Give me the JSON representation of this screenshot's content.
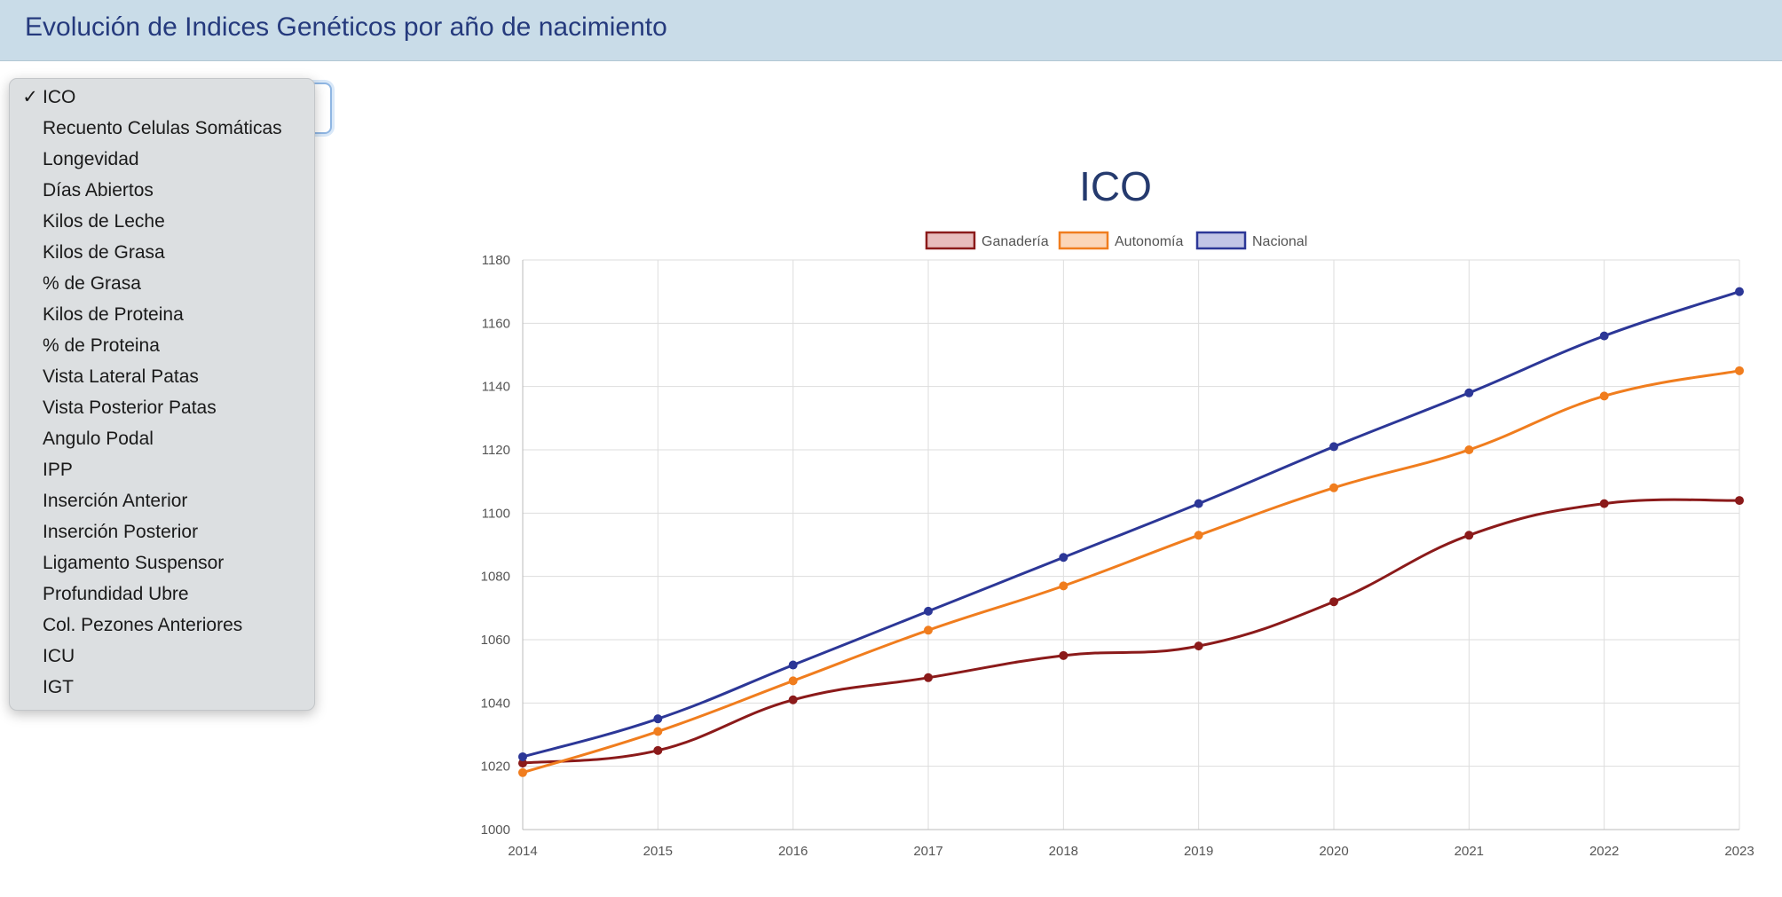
{
  "header": {
    "title": "Evolución de Indices Genéticos por año de nacimiento"
  },
  "select": {
    "selected": "ICO",
    "check_glyph": "✓",
    "options": [
      "ICO",
      "Recuento Celulas Somáticas",
      "Longevidad",
      "Días Abiertos",
      "Kilos de Leche",
      "Kilos de Grasa",
      "% de Grasa",
      "Kilos de Proteina",
      "% de Proteina",
      "Vista Lateral Patas",
      "Vista Posterior Patas",
      "Angulo Podal",
      "IPP",
      "Inserción Anterior",
      "Inserción Posterior",
      "Ligamento Suspensor",
      "Profundidad Ubre",
      "Col. Pezones Anteriores",
      "ICU",
      "IGT"
    ]
  },
  "chart_data": {
    "type": "line",
    "title": "ICO",
    "xlabel": "",
    "ylabel": "",
    "x": [
      2014,
      2015,
      2016,
      2017,
      2018,
      2019,
      2020,
      2021,
      2022,
      2023
    ],
    "ylim": [
      1000,
      1180
    ],
    "yticks": [
      1000,
      1020,
      1040,
      1060,
      1080,
      1100,
      1120,
      1140,
      1160,
      1180
    ],
    "grid": true,
    "legend_position": "top-center",
    "series": [
      {
        "name": "Ganadería",
        "color": "#8b1a1a",
        "fill": "#e8bcbc",
        "values": [
          1021,
          1025,
          1041,
          1048,
          1055,
          1058,
          1072,
          1093,
          1103,
          1104
        ]
      },
      {
        "name": "Autonomía",
        "color": "#f07d1e",
        "fill": "#fbd6b8",
        "values": [
          1018,
          1031,
          1047,
          1063,
          1077,
          1093,
          1108,
          1120,
          1137,
          1145
        ]
      },
      {
        "name": "Nacional",
        "color": "#2c3797",
        "fill": "#c2c5e6",
        "values": [
          1023,
          1035,
          1052,
          1069,
          1086,
          1103,
          1121,
          1138,
          1156,
          1170
        ]
      }
    ]
  }
}
